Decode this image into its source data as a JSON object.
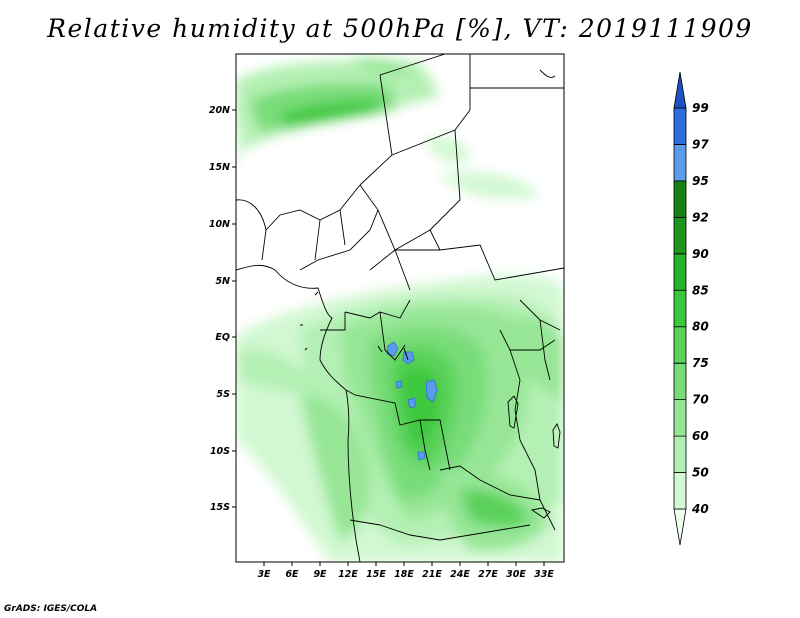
{
  "title": "Relative humidity at 500hPa [%], VT: 2019111909",
  "credit": "GrADS: IGES/COLA",
  "map": {
    "lat_ticks": [
      "20N",
      "15N",
      "10N",
      "5N",
      "EQ",
      "5S",
      "10S",
      "15S"
    ],
    "lon_ticks": [
      "3E",
      "6E",
      "9E",
      "12E",
      "15E",
      "18E",
      "21E",
      "24E",
      "27E",
      "30E",
      "33E"
    ]
  },
  "colorbar": {
    "levels": [
      "40",
      "50",
      "60",
      "70",
      "75",
      "80",
      "85",
      "90",
      "92",
      "95",
      "97",
      "99"
    ],
    "colors": [
      "#f0fff0",
      "#d2f8d2",
      "#b4f0b4",
      "#96e696",
      "#78dc78",
      "#5ad25a",
      "#3cc83c",
      "#28b428",
      "#1e961e",
      "#168216",
      "#5a9bea",
      "#2d6ede",
      "#1c52c4"
    ]
  }
}
